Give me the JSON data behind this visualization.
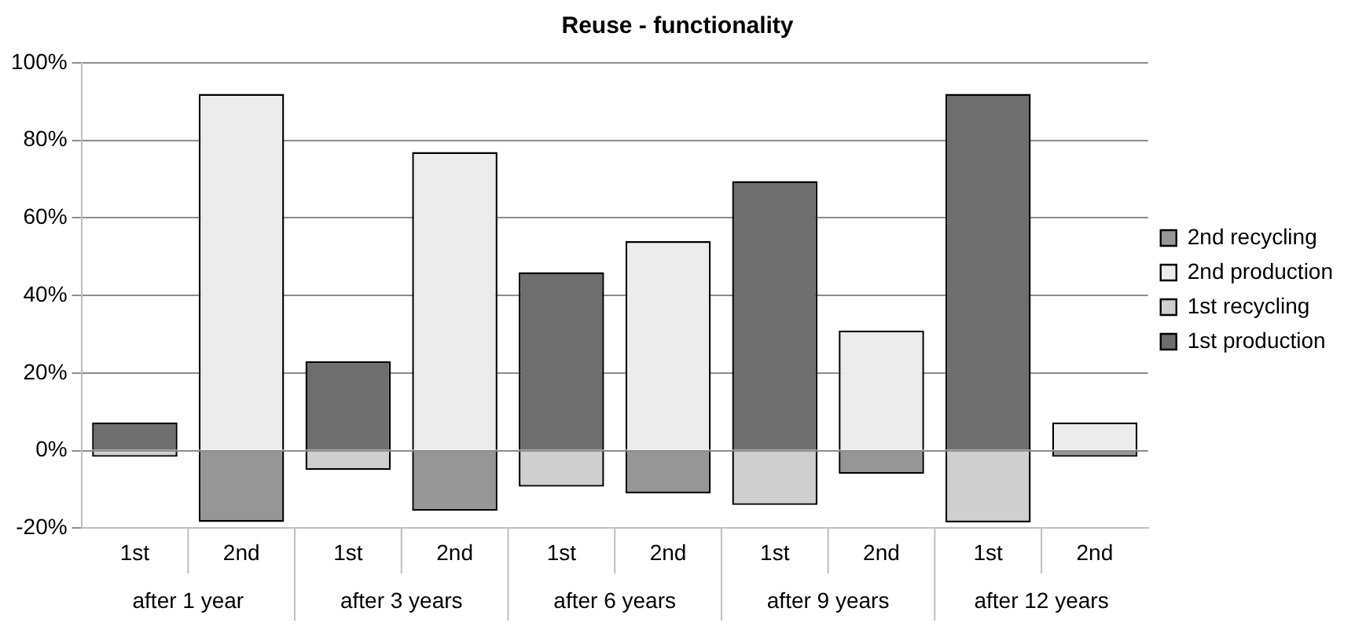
{
  "chart_data": {
    "type": "bar",
    "title": "Reuse - functionality",
    "stacked": true,
    "categories": [
      "1st",
      "2nd",
      "1st",
      "2nd",
      "1st",
      "2nd",
      "1st",
      "2nd",
      "1st",
      "2nd"
    ],
    "series": [
      {
        "name": "1st production",
        "color": "#6e6e6e",
        "values": [
          7.3,
          null,
          23,
          null,
          46,
          null,
          69.5,
          null,
          92,
          null
        ]
      },
      {
        "name": "1st recycling",
        "color": "#cfcfcf",
        "values": [
          -1.6,
          null,
          -5,
          null,
          -9.3,
          null,
          -14,
          null,
          -18.5,
          null
        ]
      },
      {
        "name": "2nd production",
        "color": "#ececec",
        "values": [
          null,
          92,
          null,
          77,
          null,
          54,
          null,
          31,
          null,
          7.3
        ]
      },
      {
        "name": "2nd recycling",
        "color": "#969696",
        "values": [
          null,
          -18.4,
          null,
          -15.5,
          null,
          -11,
          null,
          -6,
          null,
          -1.6
        ]
      }
    ],
    "ylim": [
      -20,
      100
    ],
    "yticks": [
      {
        "value": -20,
        "label": "-20%"
      },
      {
        "value": 0,
        "label": "0%"
      },
      {
        "value": 20,
        "label": "20%"
      },
      {
        "value": 40,
        "label": "40%"
      },
      {
        "value": 60,
        "label": "60%"
      },
      {
        "value": 80,
        "label": "80%"
      },
      {
        "value": 100,
        "label": "100%"
      }
    ],
    "grid": "y",
    "legend": "right",
    "annotations": [
      "after 1 year",
      "after 3 years",
      "after 6 years",
      "after 9 years",
      "after 12 years"
    ]
  }
}
